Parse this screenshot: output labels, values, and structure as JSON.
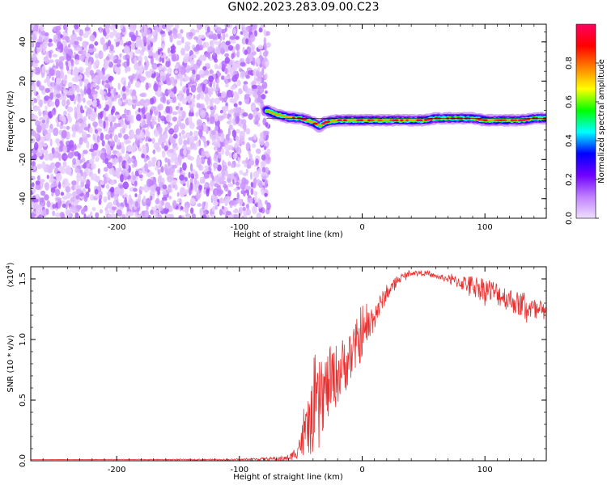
{
  "figure": {
    "title": "GN02.2023.283.09.00.C23"
  },
  "chart_data": [
    {
      "type": "heatmap",
      "xlabel": "Height of straight line (km)",
      "ylabel": "Frequency (Hz)",
      "xlim": [
        -270,
        150
      ],
      "ylim": [
        -50,
        49
      ],
      "xticks": [
        -200,
        -100,
        0,
        100
      ],
      "yticks": [
        -40,
        -20,
        0,
        20,
        40
      ],
      "colorbar": {
        "label": "Normalized spectral amplitude",
        "range": [
          0.0,
          1.0
        ],
        "ticks": [
          "0.0",
          "0.2",
          "0.4",
          "0.6",
          "0.8"
        ],
        "tick_values": [
          0.0,
          0.2,
          0.4,
          0.6,
          0.8
        ],
        "colormap": [
          "#f0e0ff",
          "#c080ff",
          "#7000ff",
          "#0000ff",
          "#00ffff",
          "#00ff00",
          "#ffff00",
          "#ff8000",
          "#ff0000",
          "#ff0060"
        ]
      },
      "regions": [
        {
          "name": "noise",
          "x": [
            -270,
            -78
          ],
          "y": [
            -50,
            49
          ],
          "amplitude": [
            0.02,
            0.15
          ]
        },
        {
          "name": "signal",
          "x": [
            -78,
            150
          ],
          "amplitude": [
            0.5,
            1.0
          ]
        }
      ],
      "signal_frequency": {
        "x": [
          -78,
          -70,
          -60,
          -50,
          -40,
          -35,
          -30,
          -20,
          -10,
          0,
          10,
          20,
          30,
          40,
          50,
          60,
          70,
          80,
          90,
          100,
          110,
          120,
          130,
          140,
          150
        ],
        "y": [
          5,
          3,
          1.5,
          1,
          -1,
          -3,
          -1,
          0,
          0,
          0,
          0,
          0,
          0,
          0,
          0,
          1,
          1,
          1,
          1,
          0,
          0,
          0,
          0,
          1,
          1
        ]
      }
    },
    {
      "type": "line",
      "xlabel": "Height of straight line (km)",
      "ylabel": "SNR (10 * v/v)",
      "y_multiplier_label": "(x10",
      "y_multiplier_exp": "4",
      "xlim": [
        -270,
        150
      ],
      "ylim": [
        0,
        1.6
      ],
      "xticks": [
        -200,
        -100,
        0,
        100
      ],
      "yticks": [
        "0.0",
        "0.5",
        "1.0",
        "1.5"
      ],
      "ytick_values": [
        0.0,
        0.5,
        1.0,
        1.5
      ],
      "series": [
        {
          "color": "#e83030",
          "x": [
            -270,
            -100,
            -60,
            -55,
            -50,
            -45,
            -40,
            -35,
            -30,
            -20,
            -10,
            0,
            10,
            20,
            30,
            40,
            50,
            60,
            70,
            80,
            90,
            100,
            110,
            120,
            130,
            140,
            150
          ],
          "y": [
            0.01,
            0.01,
            0.02,
            0.06,
            0.15,
            0.25,
            0.35,
            0.5,
            0.58,
            0.72,
            0.85,
            1.02,
            1.2,
            1.38,
            1.5,
            1.55,
            1.55,
            1.52,
            1.5,
            1.47,
            1.45,
            1.42,
            1.38,
            1.33,
            1.28,
            1.24,
            1.2
          ],
          "noise": [
            0,
            0.005,
            0.02,
            0.05,
            0.12,
            0.22,
            0.3,
            0.32,
            0.3,
            0.26,
            0.22,
            0.18,
            0.12,
            0.06,
            0.03,
            0.02,
            0.02,
            0.02,
            0.03,
            0.06,
            0.08,
            0.1,
            0.1,
            0.1,
            0.1,
            0.1,
            0.1
          ]
        }
      ]
    }
  ]
}
